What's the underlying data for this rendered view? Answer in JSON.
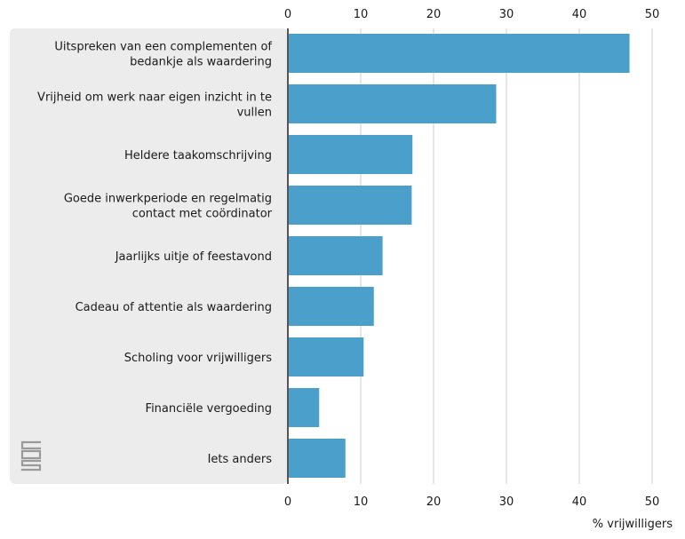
{
  "chart_data": {
    "type": "bar",
    "orientation": "horizontal",
    "categories": [
      [
        "Uitspreken van een complementen of",
        "bedankje als waardering"
      ],
      [
        "Vrijheid om werk naar eigen inzicht in te",
        "vullen"
      ],
      [
        "Heldere taakomschrijving"
      ],
      [
        "Goede inwerkperiode en regelmatig",
        "contact met coördinator"
      ],
      [
        "Jaarlijks uitje of feestavond"
      ],
      [
        "Cadeau of attentie als waardering"
      ],
      [
        "Scholing voor vrijwilligers"
      ],
      [
        "Financiële vergoeding"
      ],
      [
        "Iets anders"
      ]
    ],
    "values": [
      46.9,
      28.6,
      17.1,
      17.0,
      13.0,
      11.8,
      10.4,
      4.3,
      7.9
    ],
    "xlabel": "% vrijwilligers",
    "xlim": [
      0,
      50
    ],
    "xticks": [
      "0",
      "10",
      "20",
      "30",
      "40",
      "50"
    ],
    "tick_positions": "top-and-bottom",
    "grid": true,
    "colors": {
      "bar": "#4aa0cb",
      "panel": "#ececec",
      "grid": "#cfcfcf",
      "axis": "#555555",
      "logo": "#9a9a9a"
    }
  },
  "logo": {
    "icon": "cbs-logo-icon"
  }
}
